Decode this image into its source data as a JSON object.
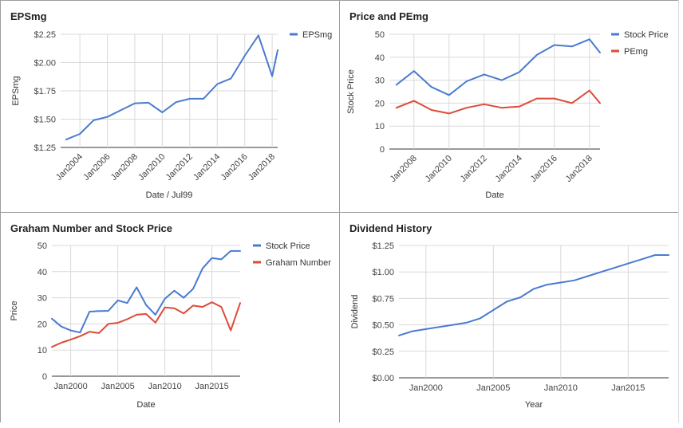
{
  "chart_data": [
    {
      "id": "eps",
      "type": "line",
      "title": "EPSmg",
      "xlabel": "Date / Jul99",
      "ylabel": "EPSmg",
      "xlim": [
        2002.6,
        2018.4
      ],
      "ylim": [
        1.25,
        2.25
      ],
      "yticks": [
        "$1.25",
        "$1.50",
        "$1.75",
        "$2.00",
        "$2.25"
      ],
      "xticks": [
        "Jan2004",
        "Jan2006",
        "Jan2008",
        "Jan2010",
        "Jan2012",
        "Jan2014",
        "Jan2016",
        "Jan2018"
      ],
      "xtick_values": [
        2004,
        2006,
        2008,
        2010,
        2012,
        2014,
        2016,
        2018
      ],
      "grid": true,
      "legend_position": "top-right",
      "series": [
        {
          "name": "EPSmg",
          "color": "#4a7bd0",
          "x": [
            2003,
            2004,
            2005,
            2006,
            2007,
            2008,
            2009,
            2010,
            2011,
            2012,
            2013,
            2014,
            2015,
            2016,
            2017,
            2018,
            2018.4
          ],
          "y": [
            1.32,
            1.37,
            1.49,
            1.52,
            1.58,
            1.64,
            1.645,
            1.56,
            1.65,
            1.68,
            1.68,
            1.81,
            1.86,
            2.06,
            2.24,
            1.88,
            2.11
          ]
        }
      ]
    },
    {
      "id": "price",
      "type": "line",
      "title": "Price and PEmg",
      "xlabel": "Date",
      "ylabel": "Stock Price",
      "xlim": [
        2006.6,
        2018.6
      ],
      "ylim": [
        0,
        50
      ],
      "yticks": [
        "0",
        "10",
        "20",
        "30",
        "40",
        "50"
      ],
      "xticks": [
        "Jan2008",
        "Jan2010",
        "Jan2012",
        "Jan2014",
        "Jan2016",
        "Jan2018"
      ],
      "xtick_values": [
        2008,
        2010,
        2012,
        2014,
        2016,
        2018
      ],
      "grid": true,
      "legend_position": "top-right",
      "series": [
        {
          "name": "Stock Price",
          "color": "#4a7bd0",
          "x": [
            2007,
            2008,
            2009,
            2010,
            2011,
            2012,
            2013,
            2014,
            2015,
            2016,
            2017,
            2018,
            2018.6
          ],
          "y": [
            28,
            34,
            27,
            23.5,
            29.5,
            32.5,
            30,
            33.5,
            41,
            45.3,
            44.7,
            47.8,
            42
          ]
        },
        {
          "name": "PEmg",
          "color": "#dd4b39",
          "x": [
            2007,
            2008,
            2009,
            2010,
            2011,
            2012,
            2013,
            2014,
            2015,
            2016,
            2017,
            2018,
            2018.6
          ],
          "y": [
            18,
            21,
            17,
            15.5,
            18,
            19.5,
            18,
            18.5,
            22,
            22,
            20,
            25.5,
            20
          ]
        }
      ]
    },
    {
      "id": "graham",
      "type": "line",
      "title": "Graham Number and Stock Price",
      "xlabel": "Date",
      "ylabel": "Price",
      "xlim": [
        1998,
        2018
      ],
      "ylim": [
        0,
        50
      ],
      "yticks": [
        "0",
        "10",
        "20",
        "30",
        "40",
        "50"
      ],
      "xticks": [
        "Jan2000",
        "Jan2005",
        "Jan2010",
        "Jan2015"
      ],
      "xtick_values": [
        2000,
        2005,
        2010,
        2015
      ],
      "grid": true,
      "legend_position": "top-right",
      "series": [
        {
          "name": "Stock Price",
          "color": "#4a7bd0",
          "x": [
            1998,
            1999,
            2000,
            2001,
            2002,
            2003,
            2004,
            2005,
            2006,
            2007,
            2008,
            2009,
            2010,
            2011,
            2012,
            2013,
            2014,
            2015,
            2016,
            2017,
            2018
          ],
          "y": [
            22,
            19,
            17.5,
            16.7,
            24.7,
            24.9,
            25,
            29,
            28,
            34,
            27.3,
            23.5,
            29.6,
            32.7,
            30,
            33.4,
            41.2,
            45.2,
            44.7,
            47.9,
            47.9
          ]
        },
        {
          "name": "Graham Number",
          "color": "#dd4b39",
          "x": [
            1998,
            1999,
            2000,
            2001,
            2002,
            2003,
            2004,
            2005,
            2006,
            2007,
            2008,
            2009,
            2010,
            2011,
            2012,
            2013,
            2014,
            2015,
            2016,
            2017,
            2018
          ],
          "y": [
            11.2,
            12.8,
            14,
            15.3,
            17,
            16.5,
            20,
            20.4,
            21.8,
            23.5,
            23.8,
            20.5,
            26.3,
            26,
            24,
            27,
            26.5,
            28.3,
            26.5,
            17.5,
            28
          ]
        }
      ]
    },
    {
      "id": "dividend",
      "type": "line",
      "title": "Dividend History",
      "xlabel": "Year",
      "ylabel": "Dividend",
      "xlim": [
        1998,
        2018
      ],
      "ylim": [
        0,
        1.25
      ],
      "yticks": [
        "$0.00",
        "$0.25",
        "$0.50",
        "$0.75",
        "$1.00",
        "$1.25"
      ],
      "xticks": [
        "Jan2000",
        "Jan2005",
        "Jan2010",
        "Jan2015"
      ],
      "xtick_values": [
        2000,
        2005,
        2010,
        2015
      ],
      "grid": true,
      "legend_position": "none",
      "series": [
        {
          "name": "",
          "color": "#4a7bd0",
          "x": [
            1998,
            1999,
            2000,
            2001,
            2002,
            2003,
            2004,
            2005,
            2006,
            2007,
            2008,
            2009,
            2010,
            2011,
            2012,
            2013,
            2014,
            2015,
            2016,
            2017,
            2018
          ],
          "y": [
            0.4,
            0.44,
            0.46,
            0.48,
            0.5,
            0.52,
            0.56,
            0.64,
            0.72,
            0.76,
            0.84,
            0.88,
            0.9,
            0.92,
            0.96,
            1.0,
            1.04,
            1.08,
            1.12,
            1.16,
            1.16
          ]
        }
      ]
    }
  ]
}
